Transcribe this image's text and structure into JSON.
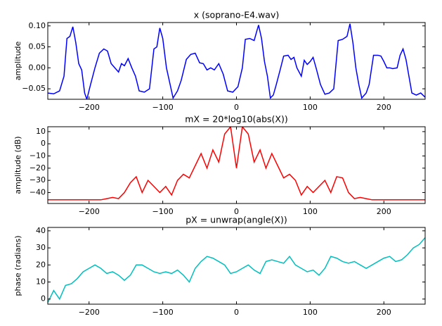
{
  "chart_data": [
    {
      "type": "line",
      "title": "x (soprano-E4.wav)",
      "y_label": "amplitude",
      "xlim": [
        -256,
        256
      ],
      "xticks": [
        {
          "value": -200,
          "label": "−200"
        },
        {
          "value": -100,
          "label": "−100"
        },
        0,
        100,
        200
      ],
      "ylim": [
        -0.075,
        0.108
      ],
      "yticks": [
        {
          "value": -0.05,
          "label": "−0.05"
        },
        {
          "value": 0,
          "label": "0.00"
        },
        {
          "value": 0.05,
          "label": "0.05"
        },
        {
          "value": 0.1,
          "label": "0.10"
        }
      ],
      "series": [
        {
          "color": "#0000ff",
          "x": [
            -256,
            -248,
            -240,
            -234,
            -230,
            -226,
            -222,
            -218,
            -214,
            -210,
            -206,
            -203,
            -198,
            -192,
            -186,
            -180,
            -175,
            -170,
            -165,
            -160,
            -156,
            -152,
            -147,
            -142,
            -137,
            -132,
            -125,
            -118,
            -112,
            -108,
            -104,
            -100,
            -95,
            -90,
            -86,
            -80,
            -75,
            -68,
            -62,
            -56,
            -50,
            -45,
            -40,
            -35,
            -30,
            -24,
            -18,
            -12,
            -5,
            2,
            8,
            12,
            18,
            24,
            28,
            30,
            34,
            38,
            42,
            46,
            50,
            54,
            60,
            64,
            70,
            74,
            78,
            82,
            88,
            92,
            96,
            100,
            104,
            108,
            114,
            120,
            126,
            132,
            138,
            144,
            150,
            154,
            158,
            162,
            166,
            170,
            176,
            180,
            186,
            192,
            196,
            200,
            204,
            208,
            212,
            218,
            222,
            226,
            230,
            234,
            238,
            244,
            250,
            256
          ],
          "values": [
            -0.06,
            -0.062,
            -0.055,
            -0.02,
            0.07,
            0.075,
            0.098,
            0.06,
            0.01,
            -0.005,
            -0.06,
            -0.075,
            -0.04,
            0.0,
            0.035,
            0.045,
            0.04,
            0.01,
            0.0,
            -0.01,
            0.01,
            0.005,
            0.022,
            0.0,
            -0.02,
            -0.055,
            -0.058,
            -0.05,
            0.045,
            0.05,
            0.095,
            0.07,
            0.0,
            -0.04,
            -0.072,
            -0.055,
            -0.03,
            0.02,
            0.032,
            0.035,
            0.012,
            0.01,
            -0.005,
            0.0,
            -0.005,
            0.01,
            -0.015,
            -0.055,
            -0.058,
            -0.045,
            0.0,
            0.068,
            0.07,
            0.065,
            0.09,
            0.102,
            0.07,
            0.015,
            -0.02,
            -0.072,
            -0.065,
            -0.04,
            0.0,
            0.028,
            0.03,
            0.02,
            0.025,
            0.0,
            -0.02,
            0.018,
            0.008,
            0.015,
            0.025,
            0.0,
            -0.04,
            -0.063,
            -0.06,
            -0.05,
            0.065,
            0.068,
            0.075,
            0.105,
            0.06,
            0.0,
            -0.04,
            -0.072,
            -0.06,
            -0.04,
            0.03,
            0.03,
            0.028,
            0.015,
            0.0,
            0.0,
            -0.002,
            0.0,
            0.03,
            0.045,
            0.02,
            -0.02,
            -0.06,
            -0.065,
            -0.06,
            -0.07
          ]
        }
      ]
    },
    {
      "type": "line",
      "title": "mX = 20*log10(abs(X))",
      "y_label": "amplitude (dB)",
      "xlim": [
        -256,
        256
      ],
      "xticks": [
        {
          "value": -200,
          "label": "−200"
        },
        {
          "value": -100,
          "label": "−100"
        },
        0,
        100,
        200
      ],
      "ylim": [
        -49,
        14
      ],
      "yticks": [
        {
          "value": -40,
          "label": "−40"
        },
        {
          "value": -30,
          "label": "−30"
        },
        {
          "value": -20,
          "label": "−20"
        },
        {
          "value": -10,
          "label": "−10"
        },
        0,
        10
      ],
      "series": [
        {
          "color": "#ff0000",
          "x": [
            -256,
            -248,
            -240,
            -232,
            -224,
            -216,
            -208,
            -200,
            -192,
            -184,
            -176,
            -168,
            -160,
            -152,
            -144,
            -136,
            -128,
            -120,
            -112,
            -104,
            -96,
            -88,
            -80,
            -72,
            -64,
            -56,
            -48,
            -40,
            -32,
            -24,
            -16,
            -8,
            0,
            8,
            16,
            24,
            32,
            40,
            48,
            56,
            64,
            72,
            80,
            88,
            96,
            104,
            112,
            120,
            128,
            136,
            144,
            152,
            160,
            168,
            176,
            184,
            192,
            200,
            208,
            216,
            224,
            232,
            240,
            248,
            256
          ],
          "values": [
            -46,
            -46,
            -46,
            -46,
            -46,
            -46,
            -46,
            -46,
            -46,
            -46,
            -45,
            -44,
            -45,
            -40,
            -32,
            -27,
            -40,
            -30,
            -35,
            -40,
            -35,
            -42,
            -30,
            -25,
            -28,
            -18,
            -8,
            -20,
            -5,
            -15,
            8,
            14,
            -20,
            14,
            8,
            -15,
            -5,
            -20,
            -8,
            -18,
            -28,
            -25,
            -30,
            -42,
            -35,
            -40,
            -35,
            -30,
            -40,
            -27,
            -28,
            -40,
            -45,
            -44,
            -45,
            -46,
            -46,
            -46,
            -46,
            -46,
            -46,
            -46,
            -46,
            -46,
            -46
          ]
        }
      ]
    },
    {
      "type": "line",
      "title": "pX = unwrap(angle(X))",
      "y_label": "phase (radians)",
      "xlim": [
        -256,
        256
      ],
      "xticks": [
        {
          "value": -200,
          "label": "−200"
        },
        {
          "value": -100,
          "label": "−100"
        },
        0,
        100,
        200
      ],
      "ylim": [
        -3,
        42
      ],
      "yticks": [
        0,
        10,
        20,
        30,
        40
      ],
      "series": [
        {
          "color": "#00bfbf",
          "x": [
            -256,
            -248,
            -240,
            -232,
            -224,
            -216,
            -208,
            -200,
            -192,
            -184,
            -176,
            -168,
            -160,
            -152,
            -144,
            -136,
            -128,
            -120,
            -112,
            -104,
            -96,
            -88,
            -80,
            -72,
            -64,
            -56,
            -48,
            -40,
            -32,
            -24,
            -16,
            -8,
            0,
            8,
            16,
            24,
            32,
            40,
            48,
            56,
            64,
            72,
            80,
            88,
            96,
            104,
            112,
            120,
            128,
            136,
            144,
            152,
            160,
            168,
            176,
            184,
            192,
            200,
            208,
            216,
            224,
            232,
            240,
            248,
            256
          ],
          "values": [
            -2,
            5,
            0,
            8,
            9,
            12,
            16,
            18,
            20,
            18,
            15,
            16,
            14,
            11,
            14,
            20,
            20,
            18,
            16,
            15,
            16,
            15,
            17,
            14,
            10,
            18,
            22,
            25,
            24,
            22,
            20,
            15,
            16,
            18,
            20,
            17,
            15,
            22,
            23,
            22,
            21,
            25,
            20,
            18,
            16,
            17,
            14,
            18,
            25,
            24,
            22,
            21,
            22,
            20,
            18,
            20,
            22,
            24,
            25,
            22,
            23,
            26,
            30,
            32,
            36
          ]
        }
      ]
    }
  ]
}
